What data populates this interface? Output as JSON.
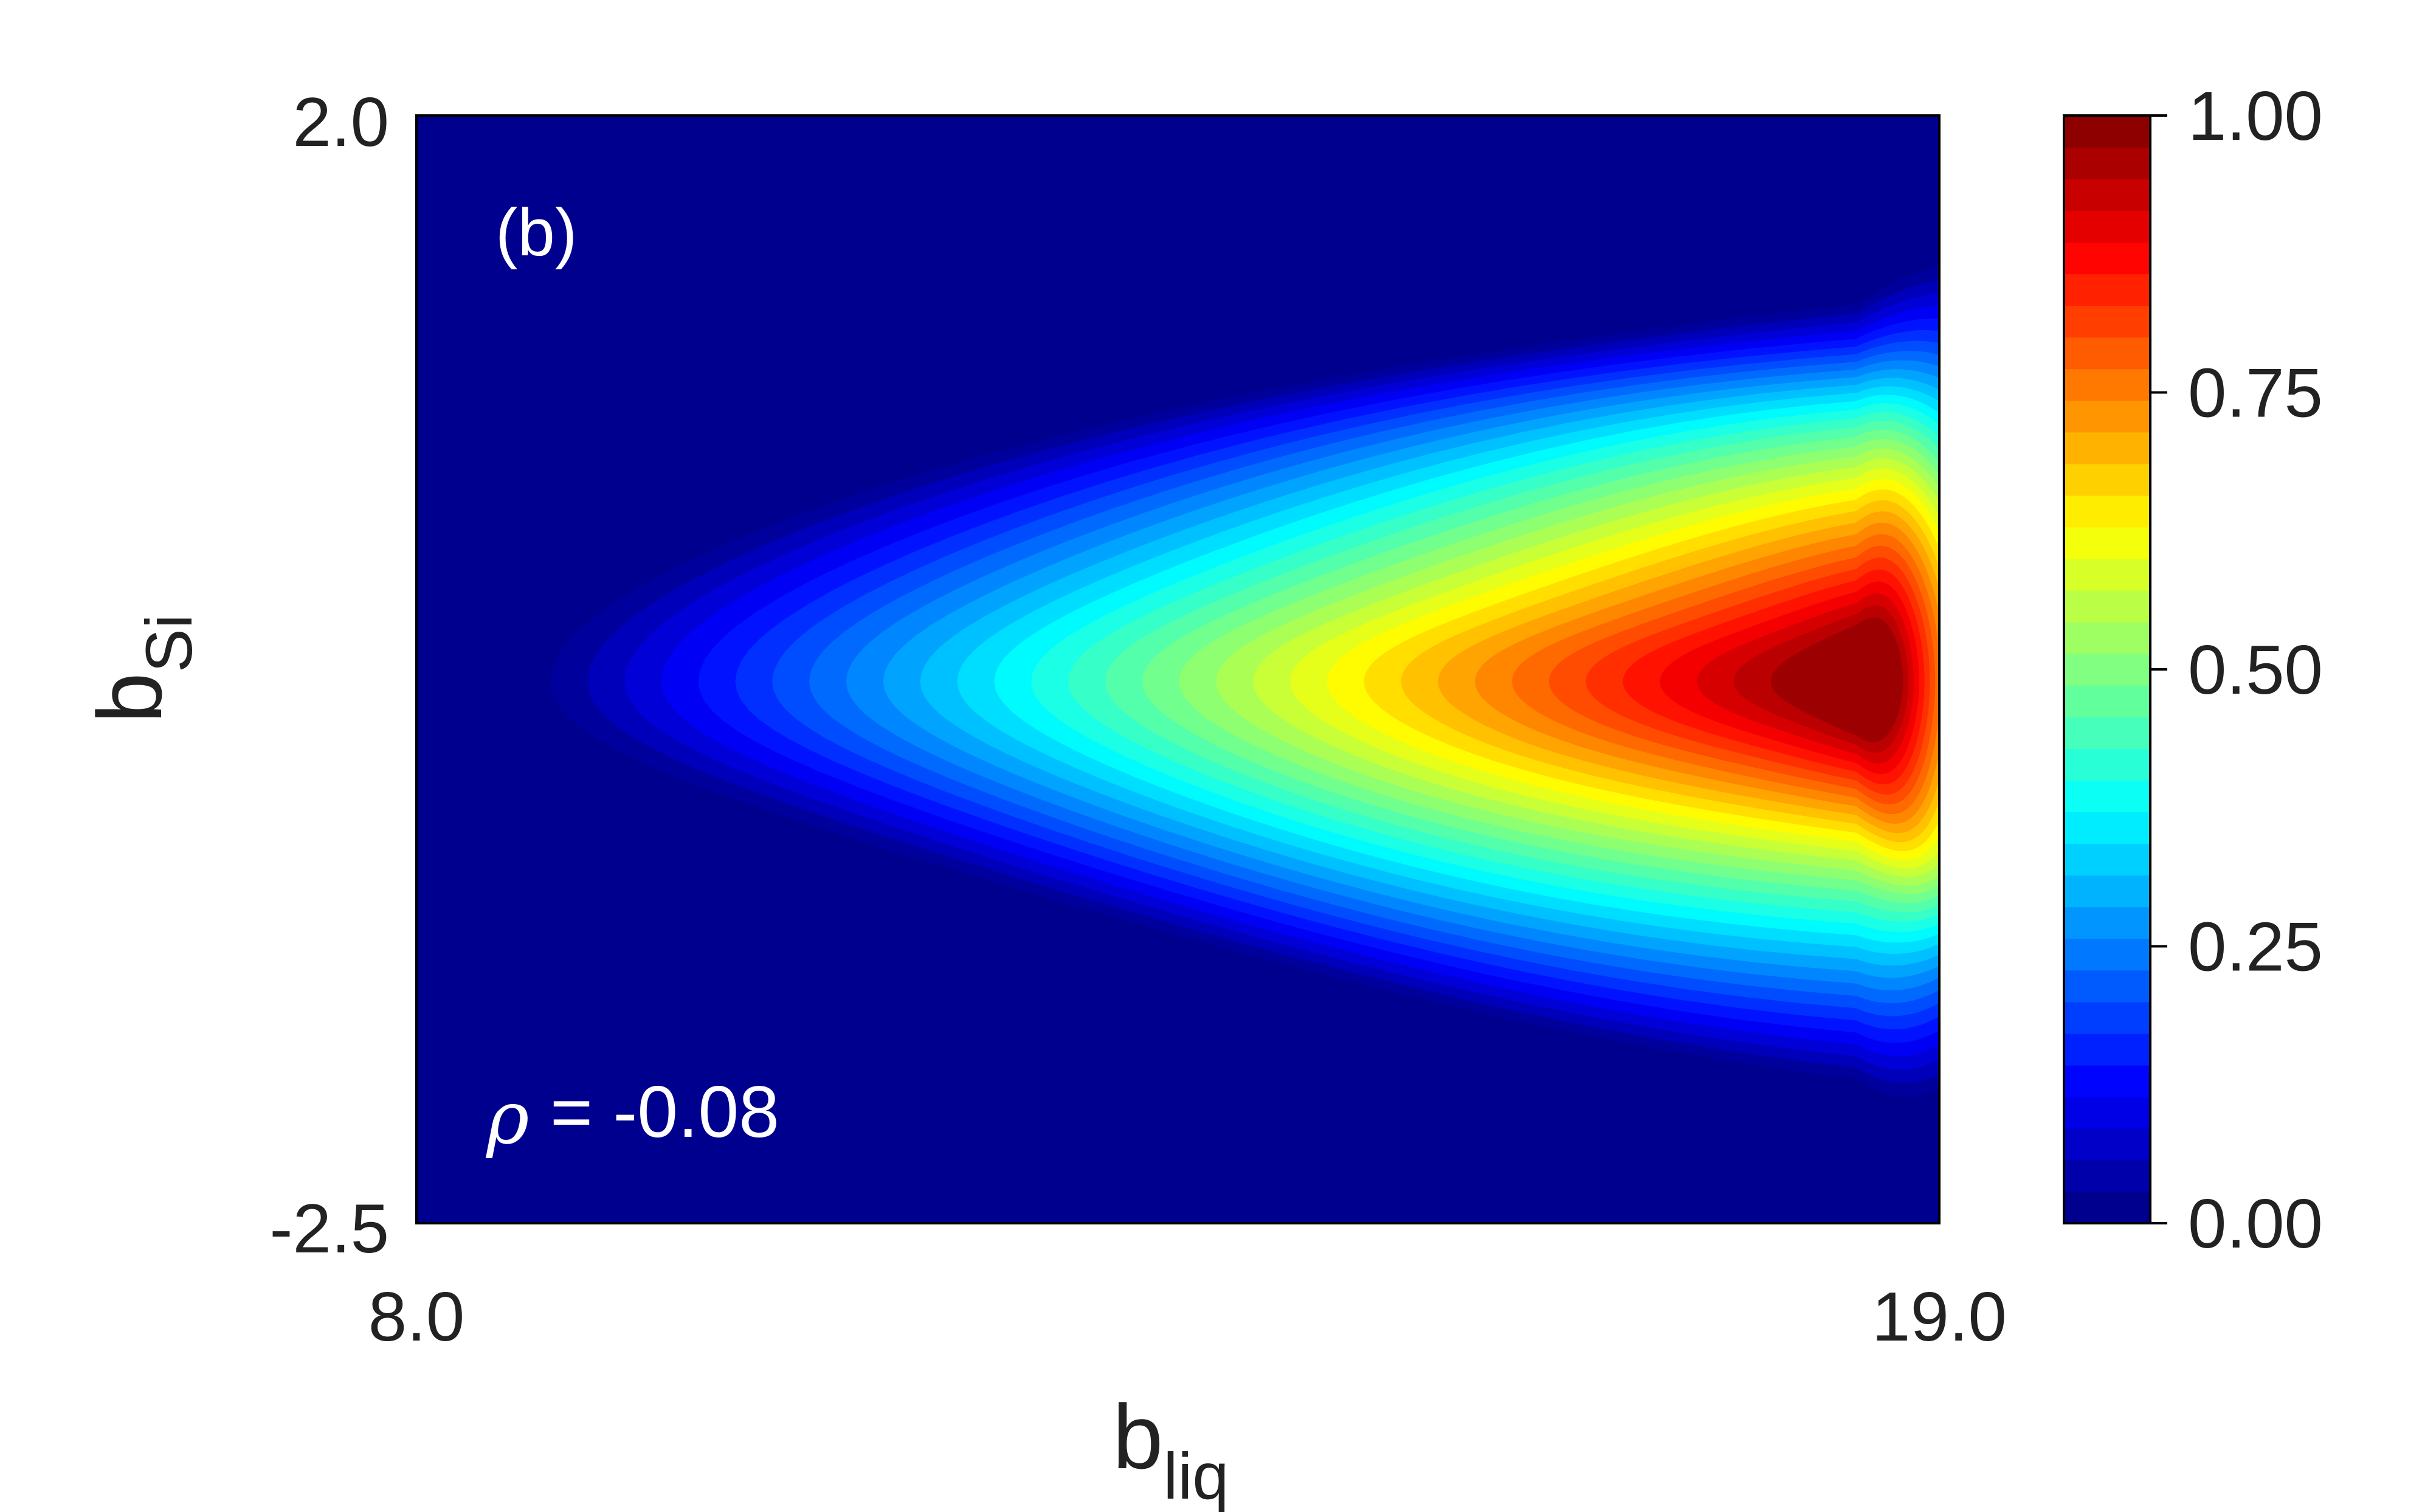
{
  "chart_data": {
    "type": "heatmap",
    "panel_label": "(b)",
    "annotation": {
      "symbol": "ρ",
      "text": "= -0.08",
      "value": -0.08
    },
    "x_axis": {
      "label_main": "b",
      "label_sub": "liq",
      "range": [
        8.0,
        19.0
      ],
      "tick_labels": [
        "8.0",
        "19.0"
      ]
    },
    "y_axis": {
      "label_main": "b",
      "label_sub": "Si",
      "range": [
        -2.5,
        2.0
      ],
      "tick_labels": [
        "2.0",
        "-2.5"
      ]
    },
    "colorbar": {
      "colormap": "jet",
      "range": [
        0.0,
        1.0
      ],
      "ticks": [
        0.0,
        0.25,
        0.5,
        0.75,
        1.0
      ],
      "tick_labels": [
        "0.00",
        "0.25",
        "0.50",
        "0.75",
        "1.00"
      ],
      "levels": 35
    },
    "density_shape": {
      "description": "filled contour of a normalized joint density, widening toward high b_liq",
      "peak": {
        "x": 18.4,
        "y": -0.3,
        "value": 1.0
      },
      "extent_x": [
        8.5,
        19.0
      ],
      "extent_y": [
        -2.3,
        1.9
      ]
    },
    "colors": {
      "background_min": "#00008F",
      "max": "#800000"
    }
  }
}
